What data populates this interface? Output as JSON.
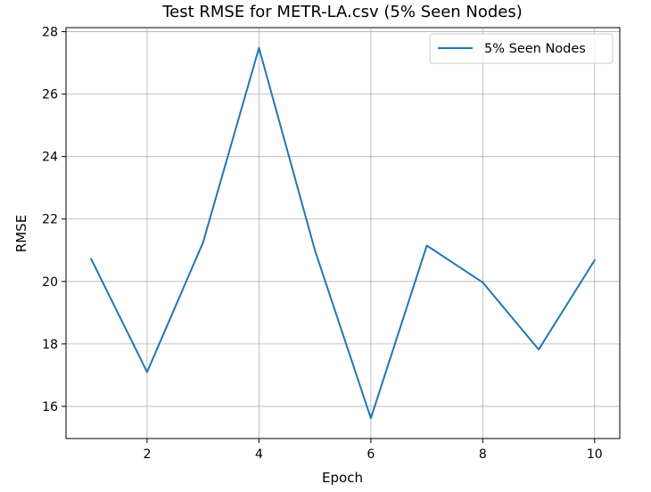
{
  "chart_data": {
    "type": "line",
    "title": "Test RMSE for METR-LA.csv (5% Seen Nodes)",
    "xlabel": "Epoch",
    "ylabel": "RMSE",
    "x": [
      1,
      2,
      3,
      4,
      5,
      6,
      7,
      8,
      9,
      10
    ],
    "series": [
      {
        "name": "5% Seen Nodes",
        "color": "#1f77b4",
        "values": [
          20.72,
          17.1,
          21.25,
          27.48,
          21.0,
          15.62,
          21.15,
          19.97,
          17.82,
          20.68
        ]
      }
    ],
    "xticks": [
      2,
      4,
      6,
      8,
      10
    ],
    "yticks": [
      16,
      18,
      20,
      22,
      24,
      26,
      28
    ],
    "xlim": [
      0.55,
      10.45
    ],
    "ylim": [
      14.97,
      28.13
    ],
    "grid": true,
    "legend_position": "top-right"
  }
}
